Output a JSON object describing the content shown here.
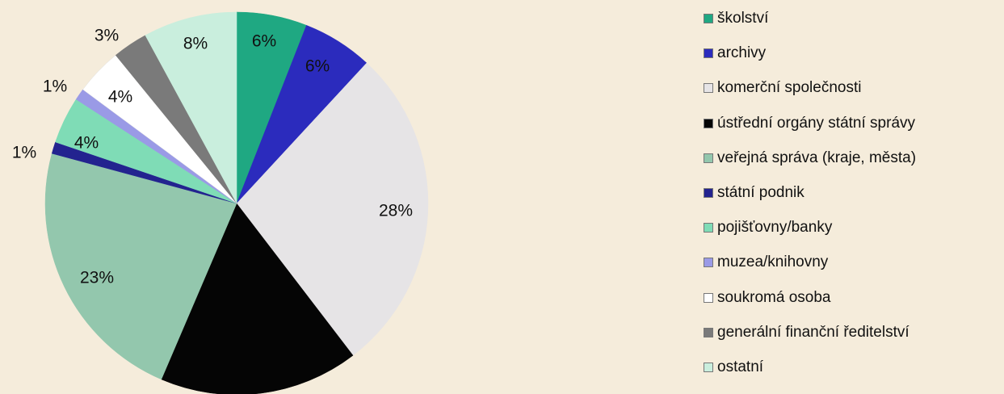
{
  "chart_data": {
    "type": "pie",
    "start_angle_deg": 0,
    "direction": "clockwise",
    "legend_position": "right",
    "slices": [
      {
        "label": "školství",
        "value": 6,
        "value_label": "6%",
        "color": "#1fa882"
      },
      {
        "label": "archivy",
        "value": 6,
        "value_label": "6%",
        "color": "#2b2bbd"
      },
      {
        "label": "komerční společnosti",
        "value": 28,
        "value_label": "28%",
        "color": "#e6e4e6"
      },
      {
        "label": "ústřední orgány státní správy",
        "value": 17,
        "value_label": "",
        "color": "#050505"
      },
      {
        "label": "veřejná správa (kraje, města)",
        "value": 23,
        "value_label": "23%",
        "color": "#93c7ad"
      },
      {
        "label": "státní podnik",
        "value": 1,
        "value_label": "1%",
        "color": "#23238f"
      },
      {
        "label": "pojišťovny/banky",
        "value": 4,
        "value_label": "4%",
        "color": "#7fdcb6"
      },
      {
        "label": "muzea/knihovny",
        "value": 1,
        "value_label": "1%",
        "color": "#9a9ae6"
      },
      {
        "label": "soukromá osoba",
        "value": 4,
        "value_label": "4%",
        "color": "#ffffff"
      },
      {
        "label": "generální finanční ředitelství",
        "value": 3,
        "value_label": "3%",
        "color": "#7a7a7a"
      },
      {
        "label": "ostatní",
        "value": 8,
        "value_label": "8%",
        "color": "#c9eedd"
      }
    ]
  }
}
